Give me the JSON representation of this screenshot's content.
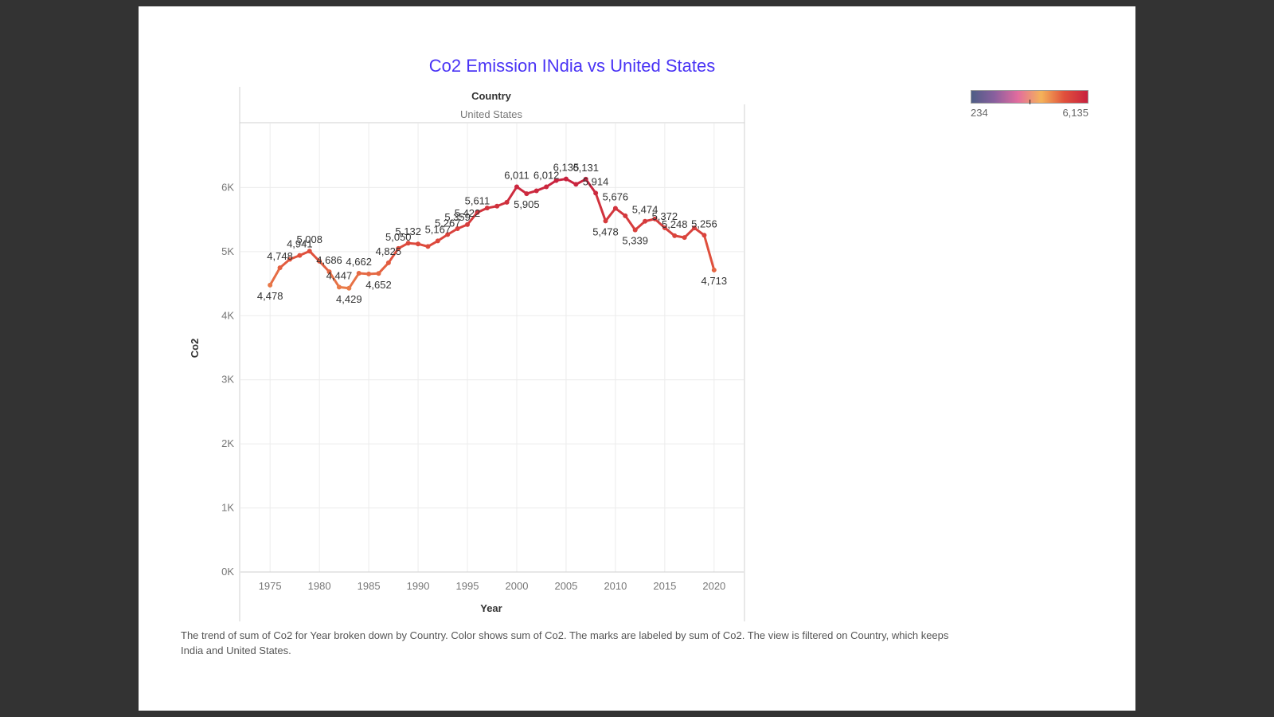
{
  "caption": "The trend of sum of Co2 for Year broken down by Country.  Color shows sum of Co2.  The marks are labeled by sum of Co2. The view is filtered on Country, which keeps India and United States.",
  "legend": {
    "min_label": "234",
    "max_label": "6,135",
    "colors": [
      "#4e5e86",
      "#8a5f9e",
      "#e26c9e",
      "#f5b35a",
      "#e0503c",
      "#c8213e"
    ]
  },
  "line_color": "#d43a3c",
  "chart_data": {
    "type": "line",
    "title": "Co2 Emission INdia vs United States",
    "column_header_title": "Country",
    "panel_label": "United States",
    "xlabel": "Year",
    "ylabel": "Co2",
    "xlim": [
      1972,
      2023
    ],
    "ylim": [
      0,
      7000
    ],
    "x_ticks": [
      1975,
      1980,
      1985,
      1990,
      1995,
      2000,
      2005,
      2010,
      2015,
      2020
    ],
    "y_ticks": [
      0,
      1000,
      2000,
      3000,
      4000,
      5000,
      6000
    ],
    "y_tick_labels": [
      "0K",
      "1K",
      "2K",
      "3K",
      "4K",
      "5K",
      "6K"
    ],
    "grid": true,
    "series": [
      {
        "x": [
          1975,
          1976,
          1977,
          1978,
          1979,
          1980,
          1981,
          1982,
          1983,
          1984,
          1985,
          1986,
          1987,
          1988,
          1989,
          1990,
          1991,
          1992,
          1993,
          1994,
          1995,
          1996,
          1997,
          1998,
          1999,
          2000,
          2001,
          2002,
          2003,
          2004,
          2005,
          2006,
          2007,
          2008,
          2009,
          2010,
          2011,
          2012,
          2013,
          2014,
          2015,
          2016,
          2017,
          2018,
          2019,
          2020
        ],
        "values": [
          4478,
          4748,
          4880,
          4941,
          5008,
          4850,
          4686,
          4447,
          4429,
          4662,
          4652,
          4660,
          4825,
          5050,
          5132,
          5120,
          5080,
          5167,
          5267,
          5359,
          5422,
          5611,
          5680,
          5710,
          5770,
          6011,
          5905,
          5950,
          6012,
          6110,
          6135,
          6050,
          6131,
          5914,
          5478,
          5676,
          5560,
          5339,
          5474,
          5510,
          5372,
          5248,
          5220,
          5370,
          5256,
          4713
        ]
      }
    ],
    "labels": [
      {
        "x": 1975,
        "y": 4478,
        "text": "4,478"
      },
      {
        "x": 1976,
        "y": 4748,
        "text": "4,748"
      },
      {
        "x": 1978,
        "y": 4941,
        "text": "4,941"
      },
      {
        "x": 1979,
        "y": 5008,
        "text": "5,008"
      },
      {
        "x": 1981,
        "y": 4686,
        "text": "4,686"
      },
      {
        "x": 1982,
        "y": 4447,
        "text": "4,447"
      },
      {
        "x": 1983,
        "y": 4429,
        "text": "4,429"
      },
      {
        "x": 1984,
        "y": 4662,
        "text": "4,662"
      },
      {
        "x": 1986,
        "y": 4652,
        "text": "4,652"
      },
      {
        "x": 1987,
        "y": 4825,
        "text": "4,825"
      },
      {
        "x": 1988,
        "y": 5050,
        "text": "5,050"
      },
      {
        "x": 1989,
        "y": 5132,
        "text": "5,132"
      },
      {
        "x": 1992,
        "y": 5167,
        "text": "5,167"
      },
      {
        "x": 1993,
        "y": 5267,
        "text": "5,267"
      },
      {
        "x": 1994,
        "y": 5359,
        "text": "5,359"
      },
      {
        "x": 1995,
        "y": 5422,
        "text": "5,422"
      },
      {
        "x": 1996,
        "y": 5611,
        "text": "5,611"
      },
      {
        "x": 2000,
        "y": 6011,
        "text": "6,011"
      },
      {
        "x": 2001,
        "y": 5905,
        "text": "5,905"
      },
      {
        "x": 2003,
        "y": 6012,
        "text": "6,012"
      },
      {
        "x": 2005,
        "y": 6135,
        "text": "6,135"
      },
      {
        "x": 2007,
        "y": 6131,
        "text": "6,131"
      },
      {
        "x": 2008,
        "y": 5914,
        "text": "5,914"
      },
      {
        "x": 2009,
        "y": 5478,
        "text": "5,478"
      },
      {
        "x": 2010,
        "y": 5676,
        "text": "5,676"
      },
      {
        "x": 2012,
        "y": 5339,
        "text": "5,339"
      },
      {
        "x": 2013,
        "y": 5474,
        "text": "5,474"
      },
      {
        "x": 2015,
        "y": 5372,
        "text": "5,372"
      },
      {
        "x": 2016,
        "y": 5248,
        "text": "5,248"
      },
      {
        "x": 2019,
        "y": 5256,
        "text": "5,256"
      },
      {
        "x": 2020,
        "y": 4713,
        "text": "4,713"
      }
    ]
  }
}
